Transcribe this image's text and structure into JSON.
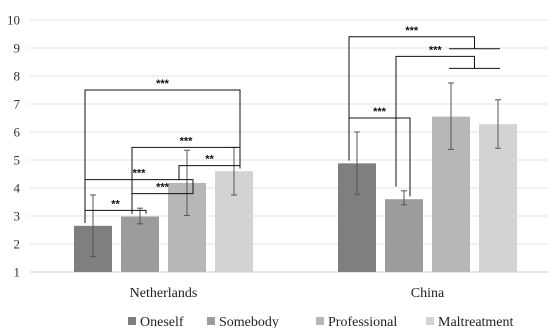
{
  "chart_data": {
    "type": "bar",
    "categories": [
      "Netherlands",
      "China"
    ],
    "series": [
      {
        "name": "Oneself",
        "color": "#7f7f7f",
        "values": [
          2.65,
          4.88
        ],
        "error_low": [
          1.55,
          3.78
        ],
        "error_high": [
          3.75,
          6.0
        ]
      },
      {
        "name": "Somebody",
        "color": "#9c9c9c",
        "values": [
          2.98,
          3.6
        ],
        "error_low": [
          2.72,
          3.4
        ],
        "error_high": [
          3.28,
          3.9
        ]
      },
      {
        "name": "Professional",
        "color": "#b7b7b7",
        "values": [
          4.18,
          6.55
        ],
        "error_low": [
          3.02,
          5.38
        ],
        "error_high": [
          5.35,
          7.75
        ]
      },
      {
        "name": "Maltreatment",
        "color": "#d3d3d3",
        "values": [
          4.6,
          6.28
        ],
        "error_low": [
          3.75,
          5.42
        ],
        "error_high": [
          5.45,
          7.15
        ]
      }
    ],
    "ylim": [
      1,
      10
    ],
    "yticks": [
      1,
      2,
      3,
      4,
      5,
      6,
      7,
      8,
      9,
      10
    ],
    "grid": true,
    "legend_position": "bottom",
    "significance": [
      {
        "category": "Netherlands",
        "from": "Oneself",
        "to": "Somebody",
        "label": "**",
        "y": 3.2
      },
      {
        "category": "Netherlands",
        "from": "Somebody",
        "to": "Professional",
        "label": "***",
        "y": 3.8
      },
      {
        "category": "Netherlands",
        "from": "Oneself",
        "to": "Professional",
        "label": "***",
        "y": 4.3
      },
      {
        "category": "Netherlands",
        "from": "Professional",
        "to": "Maltreatment",
        "label": "**",
        "y": 4.8
      },
      {
        "category": "Netherlands",
        "from": "Somebody",
        "to": "Maltreatment",
        "label": "***",
        "y": 5.45
      },
      {
        "category": "Netherlands",
        "from": "Oneself",
        "to": "Maltreatment",
        "label": "***",
        "y": 7.5
      },
      {
        "category": "China",
        "from": "Oneself",
        "to": "Somebody",
        "label": "***",
        "y": 6.5
      },
      {
        "category": "China",
        "from": "Somebody",
        "to": "Professional+Maltreatment",
        "label": "***",
        "y": 8.7
      },
      {
        "category": "China",
        "from": "Oneself",
        "to": "Professional+Maltreatment",
        "label": "***",
        "y": 9.4
      }
    ]
  }
}
